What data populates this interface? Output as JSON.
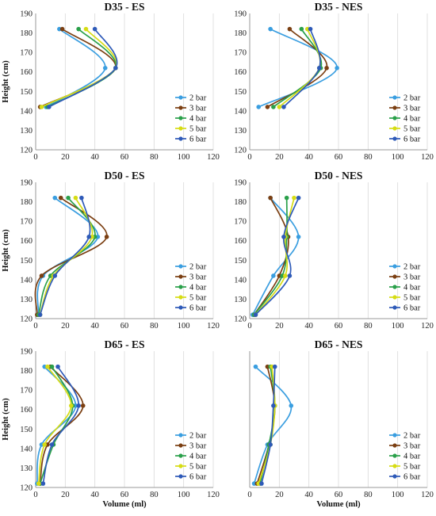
{
  "figure": {
    "x_axis_label": "Volume (ml)",
    "y_axis_label": "Height (cm)",
    "colors": {
      "2 bar": "#3a9ee0",
      "3 bar": "#7b3f12",
      "4 bar": "#2aa04a",
      "5 bar": "#d6dc14",
      "6 bar": "#2e5ab8"
    }
  },
  "chart_data": [
    {
      "type": "line",
      "title": "D35 - ES",
      "xlim": [
        0,
        120
      ],
      "ylim": [
        120,
        190
      ],
      "xticks": [
        0,
        20,
        40,
        60,
        80,
        100,
        120
      ],
      "yticks": [
        120,
        130,
        140,
        150,
        160,
        170,
        180,
        190
      ],
      "ytick_labels_shown": true,
      "legend": "bottom-right",
      "series": [
        {
          "name": "2 bar",
          "x": [
            16,
            47,
            7
          ],
          "y": [
            182,
            162,
            142
          ]
        },
        {
          "name": "3 bar",
          "x": [
            18,
            54,
            3
          ],
          "y": [
            182,
            162,
            142
          ]
        },
        {
          "name": "4 bar",
          "x": [
            29,
            54,
            8
          ],
          "y": [
            182,
            162,
            142
          ]
        },
        {
          "name": "5 bar",
          "x": [
            34,
            54,
            4
          ],
          "y": [
            182,
            162,
            142
          ]
        },
        {
          "name": "6 bar",
          "x": [
            40,
            54,
            9
          ],
          "y": [
            182,
            162,
            142
          ]
        }
      ]
    },
    {
      "type": "line",
      "title": "D35 - NES",
      "xlim": [
        0,
        120
      ],
      "ylim": [
        120,
        190
      ],
      "xticks": [
        0,
        20,
        40,
        60,
        80,
        100,
        120
      ],
      "yticks": [
        120,
        130,
        140,
        150,
        160,
        170,
        180,
        190
      ],
      "ytick_labels_shown": true,
      "legend": "bottom-right",
      "series": [
        {
          "name": "2 bar",
          "x": [
            14,
            59,
            6
          ],
          "y": [
            182,
            162,
            142
          ]
        },
        {
          "name": "3 bar",
          "x": [
            27,
            52,
            12
          ],
          "y": [
            182,
            162,
            142
          ]
        },
        {
          "name": "4 bar",
          "x": [
            35,
            48,
            16
          ],
          "y": [
            182,
            162,
            142
          ]
        },
        {
          "name": "5 bar",
          "x": [
            39,
            47,
            20
          ],
          "y": [
            182,
            162,
            142
          ]
        },
        {
          "name": "6 bar",
          "x": [
            41,
            47,
            23
          ],
          "y": [
            182,
            162,
            142
          ]
        }
      ]
    },
    {
      "type": "line",
      "title": "D50 - ES",
      "xlim": [
        0,
        120
      ],
      "ylim": [
        120,
        190
      ],
      "xticks": [
        0,
        20,
        40,
        60,
        80,
        100,
        120
      ],
      "yticks": [
        120,
        130,
        140,
        150,
        160,
        170,
        180,
        190
      ],
      "ytick_labels_shown": true,
      "legend": "bottom-right",
      "series": [
        {
          "name": "2 bar",
          "x": [
            13,
            42,
            5,
            2
          ],
          "y": [
            182,
            162,
            142,
            122
          ]
        },
        {
          "name": "3 bar",
          "x": [
            17,
            48,
            4,
            1
          ],
          "y": [
            182,
            162,
            142,
            122
          ]
        },
        {
          "name": "4 bar",
          "x": [
            22,
            40,
            10,
            2
          ],
          "y": [
            182,
            162,
            142,
            122
          ]
        },
        {
          "name": "5 bar",
          "x": [
            27,
            38,
            12,
            3
          ],
          "y": [
            182,
            162,
            142,
            122
          ]
        },
        {
          "name": "6 bar",
          "x": [
            31,
            36,
            13,
            3
          ],
          "y": [
            182,
            162,
            142,
            122
          ]
        }
      ]
    },
    {
      "type": "line",
      "title": "D50 - NES",
      "xlim": [
        0,
        120
      ],
      "ylim": [
        120,
        190
      ],
      "xticks": [
        0,
        20,
        40,
        60,
        80,
        100,
        120
      ],
      "yticks": [
        120,
        130,
        140,
        150,
        160,
        170,
        180,
        190
      ],
      "ytick_labels_shown": true,
      "legend": "bottom-right",
      "series": [
        {
          "name": "2 bar",
          "x": [
            14,
            33,
            16,
            2
          ],
          "y": [
            182,
            162,
            142,
            122
          ]
        },
        {
          "name": "3 bar",
          "x": [
            14,
            26,
            20,
            3
          ],
          "y": [
            182,
            162,
            142,
            122
          ]
        },
        {
          "name": "4 bar",
          "x": [
            25,
            25,
            22,
            3
          ],
          "y": [
            182,
            162,
            142,
            122
          ]
        },
        {
          "name": "5 bar",
          "x": [
            30,
            24,
            24,
            4
          ],
          "y": [
            182,
            162,
            142,
            122
          ]
        },
        {
          "name": "6 bar",
          "x": [
            33,
            23,
            27,
            4
          ],
          "y": [
            182,
            162,
            142,
            122
          ]
        }
      ]
    },
    {
      "type": "line",
      "title": "D65 - ES",
      "xlim": [
        0,
        120
      ],
      "ylim": [
        120,
        190
      ],
      "xticks": [
        0,
        20,
        40,
        60,
        80,
        100,
        120
      ],
      "yticks": [
        120,
        130,
        140,
        150,
        160,
        170,
        180,
        190
      ],
      "ytick_labels_shown": true,
      "legend": "bottom-right",
      "series": [
        {
          "name": "2 bar",
          "x": [
            6,
            27,
            4,
            1
          ],
          "y": [
            182,
            162,
            142,
            122
          ]
        },
        {
          "name": "3 bar",
          "x": [
            10,
            32,
            8,
            3
          ],
          "y": [
            182,
            162,
            142,
            122
          ]
        },
        {
          "name": "4 bar",
          "x": [
            11,
            25,
            12,
            3
          ],
          "y": [
            182,
            162,
            142,
            122
          ]
        },
        {
          "name": "5 bar",
          "x": [
            8,
            24,
            6,
            2
          ],
          "y": [
            182,
            162,
            142,
            122
          ]
        },
        {
          "name": "6 bar",
          "x": [
            15,
            29,
            11,
            5
          ],
          "y": [
            182,
            162,
            142,
            122
          ]
        }
      ]
    },
    {
      "type": "line",
      "title": "D65 - NES",
      "xlim": [
        0,
        120
      ],
      "ylim": [
        120,
        190
      ],
      "xticks": [
        0,
        20,
        40,
        60,
        80,
        100,
        120
      ],
      "yticks": [
        120,
        130,
        140,
        150,
        160,
        170,
        180,
        190
      ],
      "ytick_labels_shown": false,
      "legend": "bottom-right",
      "series": [
        {
          "name": "2 bar",
          "x": [
            4,
            28,
            12,
            3
          ],
          "y": [
            182,
            162,
            142,
            122
          ]
        },
        {
          "name": "3 bar",
          "x": [
            12,
            17,
            13,
            5
          ],
          "y": [
            182,
            162,
            142,
            122
          ]
        },
        {
          "name": "4 bar",
          "x": [
            14,
            17,
            13,
            7
          ],
          "y": [
            182,
            162,
            142,
            122
          ]
        },
        {
          "name": "5 bar",
          "x": [
            15,
            17,
            14,
            6
          ],
          "y": [
            182,
            162,
            142,
            122
          ]
        },
        {
          "name": "6 bar",
          "x": [
            17,
            16,
            14,
            8
          ],
          "y": [
            182,
            162,
            142,
            122
          ]
        }
      ]
    }
  ]
}
